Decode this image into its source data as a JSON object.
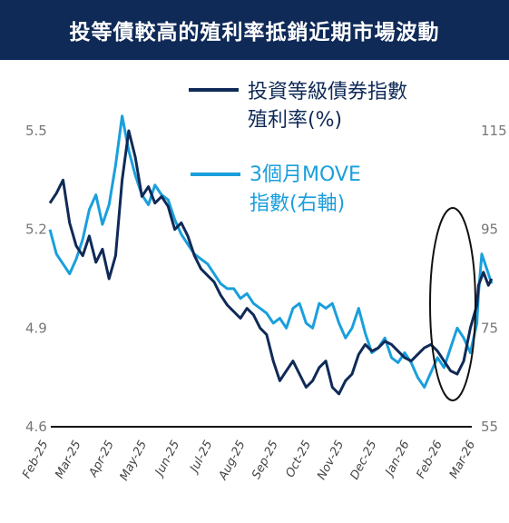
{
  "title": "投等債較高的殖利率抵銷近期市場波動",
  "chart_data": {
    "type": "line",
    "x_labels": [
      "Feb-25",
      "Mar-25",
      "Apr-25",
      "May-25",
      "Jun-25",
      "Jul-25",
      "Aug-25",
      "Sep-25",
      "Oct-25",
      "Nov-25",
      "Dec-25",
      "Jan-26",
      "Feb-26",
      "Mar-26"
    ],
    "y_left": {
      "ticks": [
        "5.5",
        "5.2",
        "4.9",
        "4.6"
      ],
      "ylim": [
        4.6,
        5.5
      ]
    },
    "y_right": {
      "ticks": [
        "115",
        "95",
        "75",
        "55"
      ],
      "ylim": [
        55,
        115
      ]
    },
    "series": [
      {
        "name_line1": "投資等級債券指數",
        "name_line2": "殖利率(%)",
        "axis": "left",
        "color": "#0f2a57",
        "points": [
          [
            0.0,
            5.28
          ],
          [
            0.2,
            5.31
          ],
          [
            0.4,
            5.35
          ],
          [
            0.6,
            5.22
          ],
          [
            0.8,
            5.15
          ],
          [
            1.0,
            5.12
          ],
          [
            1.2,
            5.18
          ],
          [
            1.4,
            5.1
          ],
          [
            1.6,
            5.14
          ],
          [
            1.8,
            5.05
          ],
          [
            2.0,
            5.12
          ],
          [
            2.2,
            5.35
          ],
          [
            2.4,
            5.5
          ],
          [
            2.6,
            5.42
          ],
          [
            2.8,
            5.3
          ],
          [
            3.0,
            5.33
          ],
          [
            3.2,
            5.28
          ],
          [
            3.4,
            5.3
          ],
          [
            3.6,
            5.27
          ],
          [
            3.8,
            5.2
          ],
          [
            4.0,
            5.22
          ],
          [
            4.2,
            5.18
          ],
          [
            4.4,
            5.12
          ],
          [
            4.6,
            5.08
          ],
          [
            4.8,
            5.06
          ],
          [
            5.0,
            5.04
          ],
          [
            5.2,
            5.0
          ],
          [
            5.4,
            4.97
          ],
          [
            5.6,
            4.95
          ],
          [
            5.8,
            4.93
          ],
          [
            6.0,
            4.96
          ],
          [
            6.2,
            4.94
          ],
          [
            6.4,
            4.9
          ],
          [
            6.6,
            4.88
          ],
          [
            6.8,
            4.8
          ],
          [
            7.0,
            4.74
          ],
          [
            7.2,
            4.77
          ],
          [
            7.4,
            4.8
          ],
          [
            7.6,
            4.76
          ],
          [
            7.8,
            4.72
          ],
          [
            8.0,
            4.74
          ],
          [
            8.2,
            4.78
          ],
          [
            8.4,
            4.8
          ],
          [
            8.6,
            4.72
          ],
          [
            8.8,
            4.7
          ],
          [
            9.0,
            4.74
          ],
          [
            9.2,
            4.76
          ],
          [
            9.4,
            4.82
          ],
          [
            9.6,
            4.85
          ],
          [
            9.8,
            4.83
          ],
          [
            10.0,
            4.84
          ],
          [
            10.2,
            4.86
          ],
          [
            10.4,
            4.85
          ],
          [
            10.6,
            4.83
          ],
          [
            10.8,
            4.81
          ],
          [
            11.0,
            4.8
          ],
          [
            11.2,
            4.82
          ],
          [
            11.4,
            4.84
          ],
          [
            11.6,
            4.85
          ],
          [
            11.8,
            4.83
          ],
          [
            12.0,
            4.8
          ],
          [
            12.2,
            4.77
          ],
          [
            12.4,
            4.76
          ],
          [
            12.6,
            4.8
          ],
          [
            12.8,
            4.9
          ],
          [
            13.0,
            4.97
          ],
          [
            13.05,
            5.03
          ],
          [
            13.2,
            5.07
          ],
          [
            13.35,
            5.03
          ],
          [
            13.45,
            5.05
          ]
        ]
      },
      {
        "name_line1": "3個月MOVE",
        "name_line2": "指數(右軸)",
        "axis": "right",
        "color": "#1a9fdc",
        "points": [
          [
            0.0,
            95
          ],
          [
            0.2,
            90
          ],
          [
            0.4,
            88
          ],
          [
            0.6,
            86
          ],
          [
            0.8,
            89
          ],
          [
            1.0,
            93
          ],
          [
            1.2,
            99
          ],
          [
            1.4,
            102
          ],
          [
            1.6,
            96
          ],
          [
            1.8,
            100
          ],
          [
            2.0,
            108
          ],
          [
            2.2,
            118
          ],
          [
            2.4,
            111
          ],
          [
            2.6,
            106
          ],
          [
            2.8,
            102
          ],
          [
            3.0,
            100
          ],
          [
            3.2,
            104
          ],
          [
            3.4,
            102
          ],
          [
            3.6,
            101
          ],
          [
            3.8,
            97
          ],
          [
            4.0,
            94
          ],
          [
            4.2,
            92
          ],
          [
            4.4,
            90
          ],
          [
            4.6,
            89
          ],
          [
            4.8,
            88
          ],
          [
            5.0,
            86
          ],
          [
            5.2,
            84
          ],
          [
            5.4,
            83
          ],
          [
            5.6,
            83
          ],
          [
            5.8,
            81
          ],
          [
            6.0,
            82
          ],
          [
            6.2,
            80
          ],
          [
            6.4,
            79
          ],
          [
            6.6,
            78
          ],
          [
            6.8,
            76
          ],
          [
            7.0,
            77
          ],
          [
            7.2,
            75
          ],
          [
            7.4,
            79
          ],
          [
            7.6,
            80
          ],
          [
            7.8,
            76
          ],
          [
            8.0,
            75
          ],
          [
            8.2,
            80
          ],
          [
            8.4,
            79
          ],
          [
            8.6,
            80
          ],
          [
            8.8,
            76
          ],
          [
            9.0,
            73
          ],
          [
            9.2,
            75
          ],
          [
            9.4,
            79
          ],
          [
            9.6,
            74
          ],
          [
            9.8,
            70
          ],
          [
            10.0,
            71
          ],
          [
            10.2,
            73
          ],
          [
            10.4,
            69
          ],
          [
            10.6,
            68
          ],
          [
            10.8,
            70
          ],
          [
            11.0,
            68
          ],
          [
            11.2,
            65
          ],
          [
            11.4,
            63
          ],
          [
            11.6,
            66
          ],
          [
            11.8,
            69
          ],
          [
            12.0,
            67
          ],
          [
            12.2,
            71
          ],
          [
            12.4,
            75
          ],
          [
            12.6,
            73
          ],
          [
            12.8,
            70
          ],
          [
            13.0,
            76
          ],
          [
            13.05,
            82
          ],
          [
            13.15,
            90
          ],
          [
            13.3,
            87
          ],
          [
            13.45,
            84
          ]
        ]
      }
    ]
  }
}
